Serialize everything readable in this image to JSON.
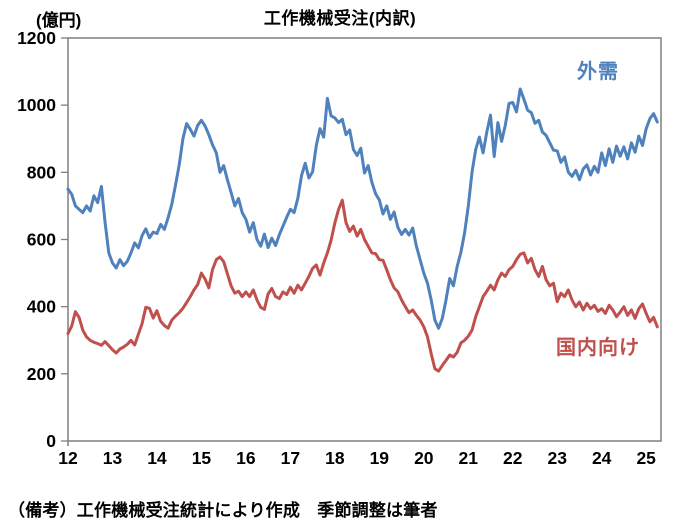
{
  "page": {
    "title": "工作機械受注(内訳)",
    "y_axis_unit": "(億円)",
    "footnote": "（備考）工作機械受注統計により作成　季節調整は筆者"
  },
  "style": {
    "axis_color": "#7F7F7F",
    "text_color": "#000000",
    "background": "#FFFFFF"
  },
  "chart_data": {
    "type": "line",
    "title": "工作機械受注(内訳)",
    "ylabel": "(億円)",
    "ylim": [
      0,
      1200
    ],
    "y_tick_step": 200,
    "y_tick_labels": [
      "0",
      "200",
      "400",
      "600",
      "800",
      "1000",
      "1200"
    ],
    "x_tick_labels": [
      "12",
      "13",
      "14",
      "15",
      "16",
      "17",
      "18",
      "19",
      "20",
      "21",
      "22",
      "23",
      "24",
      "25"
    ],
    "points_per_year": 12,
    "grid": false,
    "legend_position": "inline-labels-on-plot",
    "note": "（備考）工作機械受注統計により作成　季節調整は筆者",
    "series": [
      {
        "name": "外需",
        "color": "#4F81BD",
        "values": [
          750,
          735,
          700,
          690,
          680,
          700,
          685,
          730,
          710,
          758,
          650,
          560,
          530,
          515,
          540,
          522,
          535,
          560,
          590,
          575,
          612,
          632,
          605,
          622,
          618,
          645,
          630,
          665,
          705,
          762,
          822,
          900,
          945,
          928,
          908,
          940,
          955,
          938,
          912,
          882,
          858,
          800,
          820,
          778,
          740,
          700,
          722,
          680,
          660,
          622,
          650,
          600,
          580,
          616,
          576,
          604,
          582,
          614,
          640,
          666,
          690,
          680,
          722,
          790,
          827,
          783,
          802,
          880,
          930,
          905,
          1020,
          968,
          962,
          948,
          958,
          912,
          926,
          868,
          850,
          872,
          798,
          820,
          770,
          736,
          718,
          676,
          700,
          660,
          682,
          636,
          615,
          630,
          613,
          634,
          580,
          540,
          500,
          470,
          420,
          360,
          336,
          365,
          420,
          484,
          462,
          520,
          562,
          620,
          700,
          800,
          868,
          905,
          858,
          920,
          970,
          847,
          948,
          892,
          940,
          1005,
          1008,
          980,
          1048,
          1018,
          985,
          978,
          946,
          955,
          920,
          910,
          888,
          866,
          864,
          830,
          846,
          800,
          788,
          806,
          778,
          810,
          822,
          792,
          818,
          800,
          858,
          820,
          870,
          830,
          878,
          848,
          876,
          840,
          888,
          860,
          908,
          880,
          930,
          960,
          975,
          950
        ]
      },
      {
        "name": "国内向け",
        "color": "#C0504D",
        "values": [
          320,
          342,
          385,
          368,
          330,
          310,
          300,
          294,
          290,
          285,
          296,
          284,
          272,
          262,
          274,
          280,
          288,
          300,
          286,
          318,
          350,
          398,
          395,
          366,
          388,
          356,
          344,
          336,
          360,
          372,
          382,
          395,
          412,
          430,
          450,
          466,
          500,
          482,
          456,
          510,
          540,
          548,
          534,
          498,
          462,
          440,
          446,
          430,
          444,
          430,
          450,
          420,
          398,
          392,
          438,
          454,
          430,
          424,
          444,
          436,
          458,
          440,
          464,
          450,
          470,
          490,
          514,
          524,
          494,
          530,
          560,
          598,
          650,
          690,
          717,
          650,
          624,
          640,
          610,
          630,
          600,
          580,
          560,
          558,
          540,
          538,
          510,
          480,
          456,
          444,
          420,
          400,
          382,
          390,
          374,
          360,
          340,
          310,
          260,
          215,
          208,
          225,
          240,
          256,
          250,
          264,
          292,
          300,
          312,
          330,
          370,
          400,
          430,
          446,
          464,
          450,
          480,
          500,
          490,
          510,
          520,
          540,
          556,
          560,
          530,
          544,
          510,
          490,
          520,
          480,
          462,
          470,
          415,
          440,
          430,
          450,
          420,
          400,
          414,
          390,
          410,
          394,
          404,
          386,
          394,
          380,
          404,
          390,
          370,
          384,
          400,
          374,
          390,
          365,
          394,
          408,
          380,
          355,
          368,
          340
        ]
      }
    ]
  }
}
